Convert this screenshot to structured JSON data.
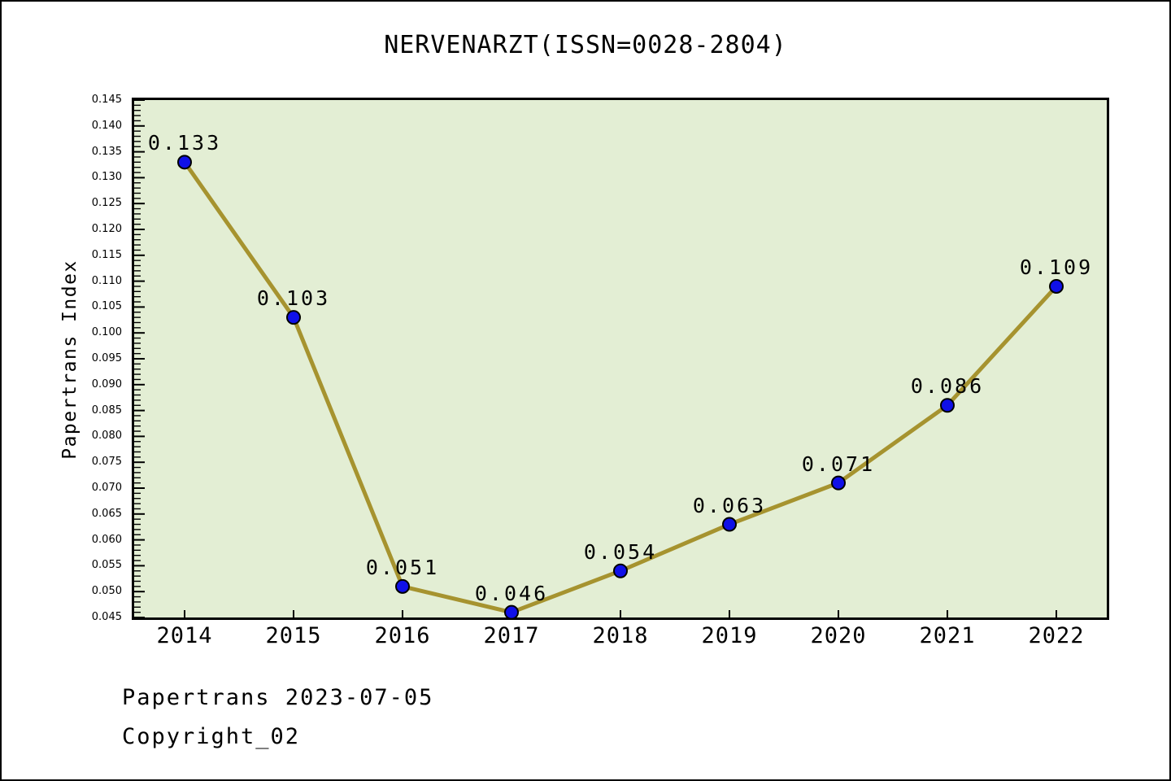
{
  "title": "NERVENARZT(ISSN=0028-2804)",
  "footer": {
    "line1": "Papertrans 2023-07-05",
    "line2": "Copyright_02"
  },
  "chart_data": {
    "type": "line",
    "title": "NERVENARZT(ISSN=0028-2804)",
    "xlabel": "",
    "ylabel": "Papertrans Index",
    "categories": [
      "2014",
      "2015",
      "2016",
      "2017",
      "2018",
      "2019",
      "2020",
      "2021",
      "2022"
    ],
    "series": [
      {
        "name": "Papertrans Index",
        "values": [
          0.133,
          0.103,
          0.051,
          0.046,
          0.054,
          0.063,
          0.071,
          0.086,
          0.109
        ]
      }
    ],
    "point_labels": [
      "0.133",
      "0.103",
      "0.051",
      "0.046",
      "0.054",
      "0.063",
      "0.071",
      "0.086",
      "0.109"
    ],
    "ylim": [
      0.045,
      0.145
    ],
    "y_tick_step": 0.005,
    "y_minor_tick_step": 0.001,
    "y_tick_labels": [
      "0.045",
      "0.050",
      "0.055",
      "0.060",
      "0.065",
      "0.070",
      "0.075",
      "0.080",
      "0.085",
      "0.090",
      "0.095",
      "0.100",
      "0.105",
      "0.110",
      "0.115",
      "0.120",
      "0.125",
      "0.130",
      "0.135",
      "0.140",
      "0.145"
    ],
    "grid": false,
    "legend": "none",
    "tick_direction": "in",
    "colors": {
      "line": "#a6932f",
      "marker": "#1010e8",
      "marker_edge": "#000000",
      "plot_background": "#e3eed4",
      "spine": "#000000",
      "text": "#000000",
      "figure_background": "#ffffff"
    }
  }
}
